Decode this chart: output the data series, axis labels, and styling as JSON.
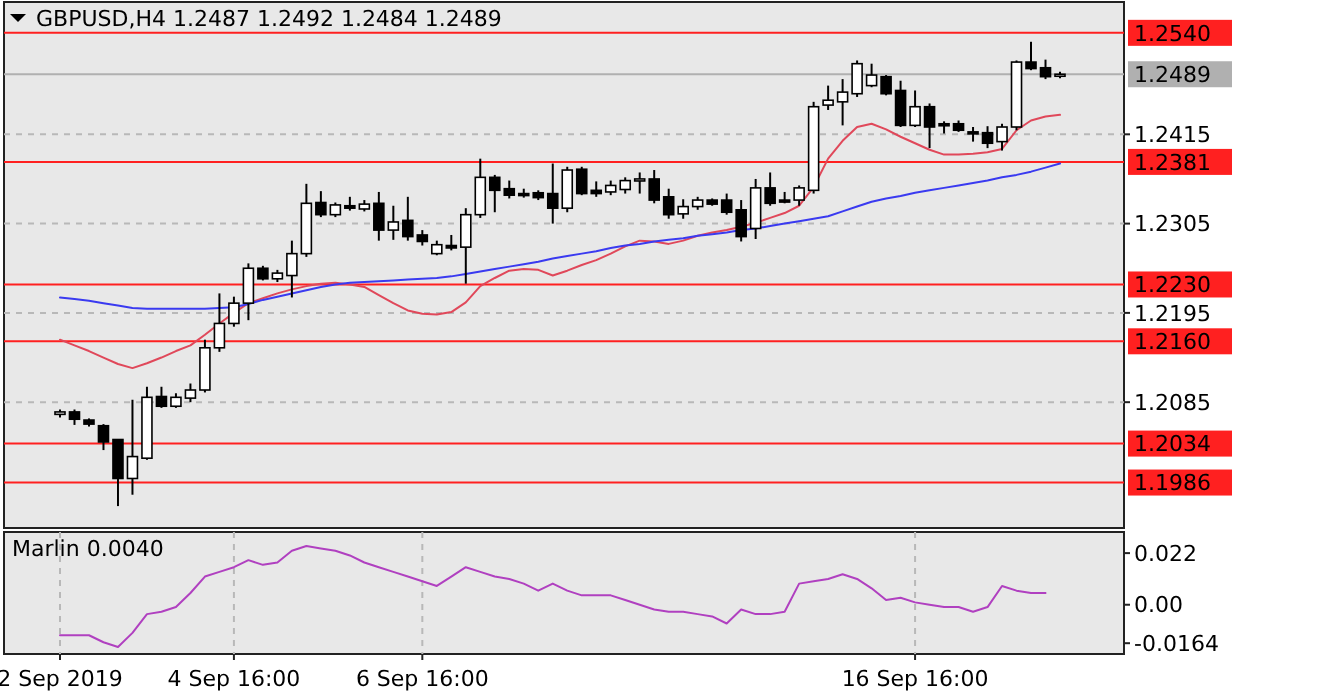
{
  "chart_data": [
    {
      "type": "candlestick",
      "title": "GBPUSD,H4  1.2487 1.2492 1.2484 1.2489",
      "categories": [
        null,
        null,
        null,
        null,
        null,
        null,
        null,
        null,
        null,
        null,
        null,
        null,
        null,
        null,
        null,
        null,
        null,
        null,
        null,
        null,
        null,
        null,
        null,
        null,
        null,
        null,
        null,
        null,
        null,
        null,
        null,
        null,
        null,
        null,
        null,
        null,
        null,
        null,
        null,
        null,
        null,
        null,
        null,
        null,
        null,
        null,
        null,
        null,
        null,
        null,
        null,
        null,
        null,
        null,
        null,
        null,
        null,
        null,
        null,
        null,
        null,
        null,
        null,
        null,
        null,
        null,
        null,
        null,
        null,
        null
      ],
      "ohlc": [
        [
          1.207,
          1.2076,
          1.2066,
          1.2073
        ],
        [
          1.2073,
          1.2076,
          1.2057,
          1.2064
        ],
        [
          1.2063,
          1.2065,
          1.2055,
          1.2058
        ],
        [
          1.2056,
          1.2058,
          1.2026,
          1.2036
        ],
        [
          1.2039,
          1.2039,
          1.1957,
          1.1991
        ],
        [
          1.1991,
          1.2088,
          1.1971,
          1.2018
        ],
        [
          1.2016,
          1.2104,
          1.2014,
          1.2091
        ],
        [
          1.2092,
          1.2104,
          1.2078,
          1.208
        ],
        [
          1.208,
          1.2096,
          1.2078,
          1.2091
        ],
        [
          1.209,
          1.2108,
          1.2085,
          1.21
        ],
        [
          1.21,
          1.2162,
          1.2097,
          1.2152
        ],
        [
          1.2152,
          1.2219,
          1.2147,
          1.2182
        ],
        [
          1.2182,
          1.2215,
          1.2178,
          1.2207
        ],
        [
          1.2207,
          1.2256,
          1.2186,
          1.225
        ],
        [
          1.225,
          1.2253,
          1.2235,
          1.2237
        ],
        [
          1.2237,
          1.2248,
          1.2233,
          1.2244
        ],
        [
          1.2241,
          1.2284,
          1.2214,
          1.2268
        ],
        [
          1.2268,
          1.2354,
          1.2264,
          1.233
        ],
        [
          1.2331,
          1.2345,
          1.2313,
          1.2316
        ],
        [
          1.2316,
          1.2331,
          1.2313,
          1.2328
        ],
        [
          1.2327,
          1.2338,
          1.2321,
          1.2324
        ],
        [
          1.2323,
          1.2334,
          1.232,
          1.2329
        ],
        [
          1.233,
          1.2344,
          1.2284,
          1.2297
        ],
        [
          1.2297,
          1.2327,
          1.2285,
          1.2307
        ],
        [
          1.2309,
          1.2338,
          1.2284,
          1.2289
        ],
        [
          1.2291,
          1.2297,
          1.2278,
          1.2283
        ],
        [
          1.2268,
          1.2284,
          1.2266,
          1.2279
        ],
        [
          1.2278,
          1.2291,
          1.2272,
          1.2275
        ],
        [
          1.2276,
          1.2324,
          1.2231,
          1.2316
        ],
        [
          1.2316,
          1.2385,
          1.2312,
          1.2362
        ],
        [
          1.2362,
          1.2365,
          1.2319,
          1.2346
        ],
        [
          1.2348,
          1.2358,
          1.2336,
          1.234
        ],
        [
          1.2342,
          1.2348,
          1.2337,
          1.2341
        ],
        [
          1.2343,
          1.2346,
          1.2334,
          1.2337
        ],
        [
          1.2342,
          1.2379,
          1.2305,
          1.2324
        ],
        [
          1.2324,
          1.2375,
          1.2319,
          1.2371
        ],
        [
          1.2372,
          1.2375,
          1.234,
          1.2342
        ],
        [
          1.2346,
          1.2357,
          1.2338,
          1.2342
        ],
        [
          1.2344,
          1.2358,
          1.234,
          1.2352
        ],
        [
          1.2347,
          1.2362,
          1.2342,
          1.2358
        ],
        [
          1.2359,
          1.2368,
          1.2342,
          1.236
        ],
        [
          1.236,
          1.2371,
          1.233,
          1.2334
        ],
        [
          1.2338,
          1.2348,
          1.2311,
          1.2316
        ],
        [
          1.2317,
          1.2335,
          1.2311,
          1.2326
        ],
        [
          1.2326,
          1.2338,
          1.2322,
          1.2334
        ],
        [
          1.2334,
          1.2336,
          1.2327,
          1.2329
        ],
        [
          1.2334,
          1.2342,
          1.2316,
          1.2319
        ],
        [
          1.2322,
          1.2334,
          1.2283,
          1.2289
        ],
        [
          1.2299,
          1.236,
          1.2286,
          1.2349
        ],
        [
          1.2349,
          1.2368,
          1.2327,
          1.233
        ],
        [
          1.2334,
          1.2344,
          1.233,
          1.2332
        ],
        [
          1.2334,
          1.2352,
          1.2327,
          1.2349
        ],
        [
          1.2346,
          1.2455,
          1.2342,
          1.2449
        ],
        [
          1.2451,
          1.2475,
          1.2445,
          1.2457
        ],
        [
          1.2455,
          1.2483,
          1.2426,
          1.2467
        ],
        [
          1.2465,
          1.2506,
          1.2461,
          1.2502
        ],
        [
          1.2475,
          1.2502,
          1.2473,
          1.2488
        ],
        [
          1.2486,
          1.2488,
          1.2463,
          1.2465
        ],
        [
          1.2469,
          1.2481,
          1.2424,
          1.2426
        ],
        [
          1.2426,
          1.2469,
          1.2424,
          1.2449
        ],
        [
          1.2449,
          1.2453,
          1.2398,
          1.2424
        ],
        [
          1.2428,
          1.2431,
          1.2416,
          1.2427
        ],
        [
          1.2428,
          1.2432,
          1.2418,
          1.242
        ],
        [
          1.2418,
          1.2424,
          1.2406,
          1.2417
        ],
        [
          1.2417,
          1.2425,
          1.2398,
          1.2404
        ],
        [
          1.2406,
          1.2428,
          1.2395,
          1.2424
        ],
        [
          1.2424,
          1.2506,
          1.242,
          1.2504
        ],
        [
          1.2504,
          1.2529,
          1.2494,
          1.2496
        ],
        [
          1.2497,
          1.2507,
          1.2483,
          1.2486
        ],
        [
          1.2487,
          1.2492,
          1.2484,
          1.2489
        ]
      ],
      "series": [
        {
          "type": "line",
          "color": "#e0485a",
          "values": [
            1.2162,
            1.2155,
            1.2148,
            1.214,
            1.2132,
            1.2127,
            1.2133,
            1.214,
            1.2148,
            1.2155,
            1.2168,
            1.2182,
            1.2195,
            1.2207,
            1.2213,
            1.2219,
            1.2224,
            1.2228,
            1.2231,
            1.2232,
            1.223,
            1.2227,
            1.2217,
            1.2207,
            1.2198,
            1.2194,
            1.2193,
            1.2196,
            1.2208,
            1.2228,
            1.2238,
            1.2247,
            1.2249,
            1.2248,
            1.2241,
            1.2247,
            1.2254,
            1.226,
            1.2268,
            1.2277,
            1.2284,
            1.2283,
            1.228,
            1.2284,
            1.229,
            1.2294,
            1.2297,
            1.2301,
            1.2306,
            1.2312,
            1.2318,
            1.2327,
            1.235,
            1.2385,
            1.2407,
            1.2424,
            1.2428,
            1.2421,
            1.2412,
            1.2404,
            1.2396,
            1.239,
            1.239,
            1.2391,
            1.2393,
            1.2397,
            1.242,
            1.2432,
            1.2437,
            1.2439
          ]
        },
        {
          "type": "line",
          "color": "#3a3af0",
          "values": [
            1.2214,
            1.2212,
            1.221,
            1.2207,
            1.2204,
            1.2201,
            1.22,
            1.22,
            1.22,
            1.22,
            1.22,
            1.2201,
            1.2202,
            1.2206,
            1.2211,
            1.2215,
            1.2219,
            1.2223,
            1.2227,
            1.223,
            1.2232,
            1.2233,
            1.2234,
            1.2235,
            1.2236,
            1.2237,
            1.2238,
            1.224,
            1.2243,
            1.2246,
            1.2249,
            1.2252,
            1.2255,
            1.2258,
            1.2262,
            1.2265,
            1.2268,
            1.2271,
            1.2275,
            1.2278,
            1.228,
            1.2283,
            1.2285,
            1.2287,
            1.229,
            1.2292,
            1.2294,
            1.2297,
            1.2299,
            1.2302,
            1.2305,
            1.2308,
            1.2311,
            1.2314,
            1.232,
            1.2326,
            1.2332,
            1.2336,
            1.2339,
            1.2343,
            1.2346,
            1.2349,
            1.2352,
            1.2355,
            1.2358,
            1.2362,
            1.2365,
            1.2369,
            1.2374,
            1.2379
          ]
        }
      ],
      "ylim": [
        1.193,
        1.2578
      ],
      "yticks": [
        1.2415,
        1.2305,
        1.2195,
        1.2085
      ],
      "grid": true,
      "tick_labels": "y",
      "ref_lines": [
        {
          "axis": "y",
          "value": 1.254,
          "label": "1.2540",
          "color": "#ff2020"
        },
        {
          "axis": "y",
          "value": 1.2489,
          "label": "1.2489",
          "color": "#b0b0b0"
        },
        {
          "axis": "y",
          "value": 1.2381,
          "label": "1.2381",
          "color": "#ff2020"
        },
        {
          "axis": "y",
          "value": 1.223,
          "label": "1.2230",
          "color": "#ff2020"
        },
        {
          "axis": "y",
          "value": 1.216,
          "label": "1.2160",
          "color": "#ff2020"
        },
        {
          "axis": "y",
          "value": 1.2034,
          "label": "1.2034",
          "color": "#ff2020"
        },
        {
          "axis": "y",
          "value": 1.1986,
          "label": "1.1986",
          "color": "#ff2020"
        }
      ]
    },
    {
      "type": "line",
      "title": "Marlin 0.0040",
      "categories": [
        "2 Sep 2019",
        null,
        null,
        null,
        null,
        null,
        null,
        null,
        null,
        null,
        null,
        null,
        "4 Sep 16:00",
        null,
        null,
        null,
        null,
        null,
        null,
        null,
        null,
        null,
        null,
        null,
        null,
        "6 Sep 16:00",
        null,
        null,
        null,
        null,
        null,
        null,
        null,
        null,
        null,
        null,
        null,
        null,
        null,
        null,
        null,
        null,
        null,
        null,
        null,
        null,
        null,
        null,
        null,
        null,
        null,
        null,
        null,
        null,
        null,
        null,
        null,
        null,
        null,
        "16 Sep 16:00",
        null,
        null,
        null,
        null,
        null,
        null,
        null,
        null,
        null,
        null
      ],
      "series": [
        {
          "color": "#b040c0",
          "values": [
            -0.013,
            -0.013,
            -0.013,
            -0.016,
            -0.018,
            -0.012,
            -0.004,
            -0.003,
            -0.001,
            0.005,
            0.012,
            0.014,
            0.016,
            0.019,
            0.017,
            0.018,
            0.023,
            0.025,
            0.024,
            0.023,
            0.021,
            0.018,
            0.016,
            0.014,
            0.012,
            0.01,
            0.008,
            0.012,
            0.016,
            0.014,
            0.012,
            0.011,
            0.009,
            0.006,
            0.009,
            0.006,
            0.004,
            0.004,
            0.004,
            0.002,
            0.0,
            -0.002,
            -0.003,
            -0.003,
            -0.004,
            -0.005,
            -0.008,
            -0.002,
            -0.004,
            -0.004,
            -0.003,
            0.009,
            0.01,
            0.011,
            0.013,
            0.011,
            0.007,
            0.002,
            0.003,
            0.001,
            0.0,
            -0.001,
            -0.001,
            -0.003,
            -0.001,
            0.008,
            0.006,
            0.005,
            0.005,
            null
          ]
        }
      ],
      "ylim": [
        -0.021,
        0.031
      ],
      "yticks": [
        0.022,
        {
          "value": 0,
          "label": "0.00"
        },
        -0.0164
      ],
      "grid": "x"
    }
  ]
}
